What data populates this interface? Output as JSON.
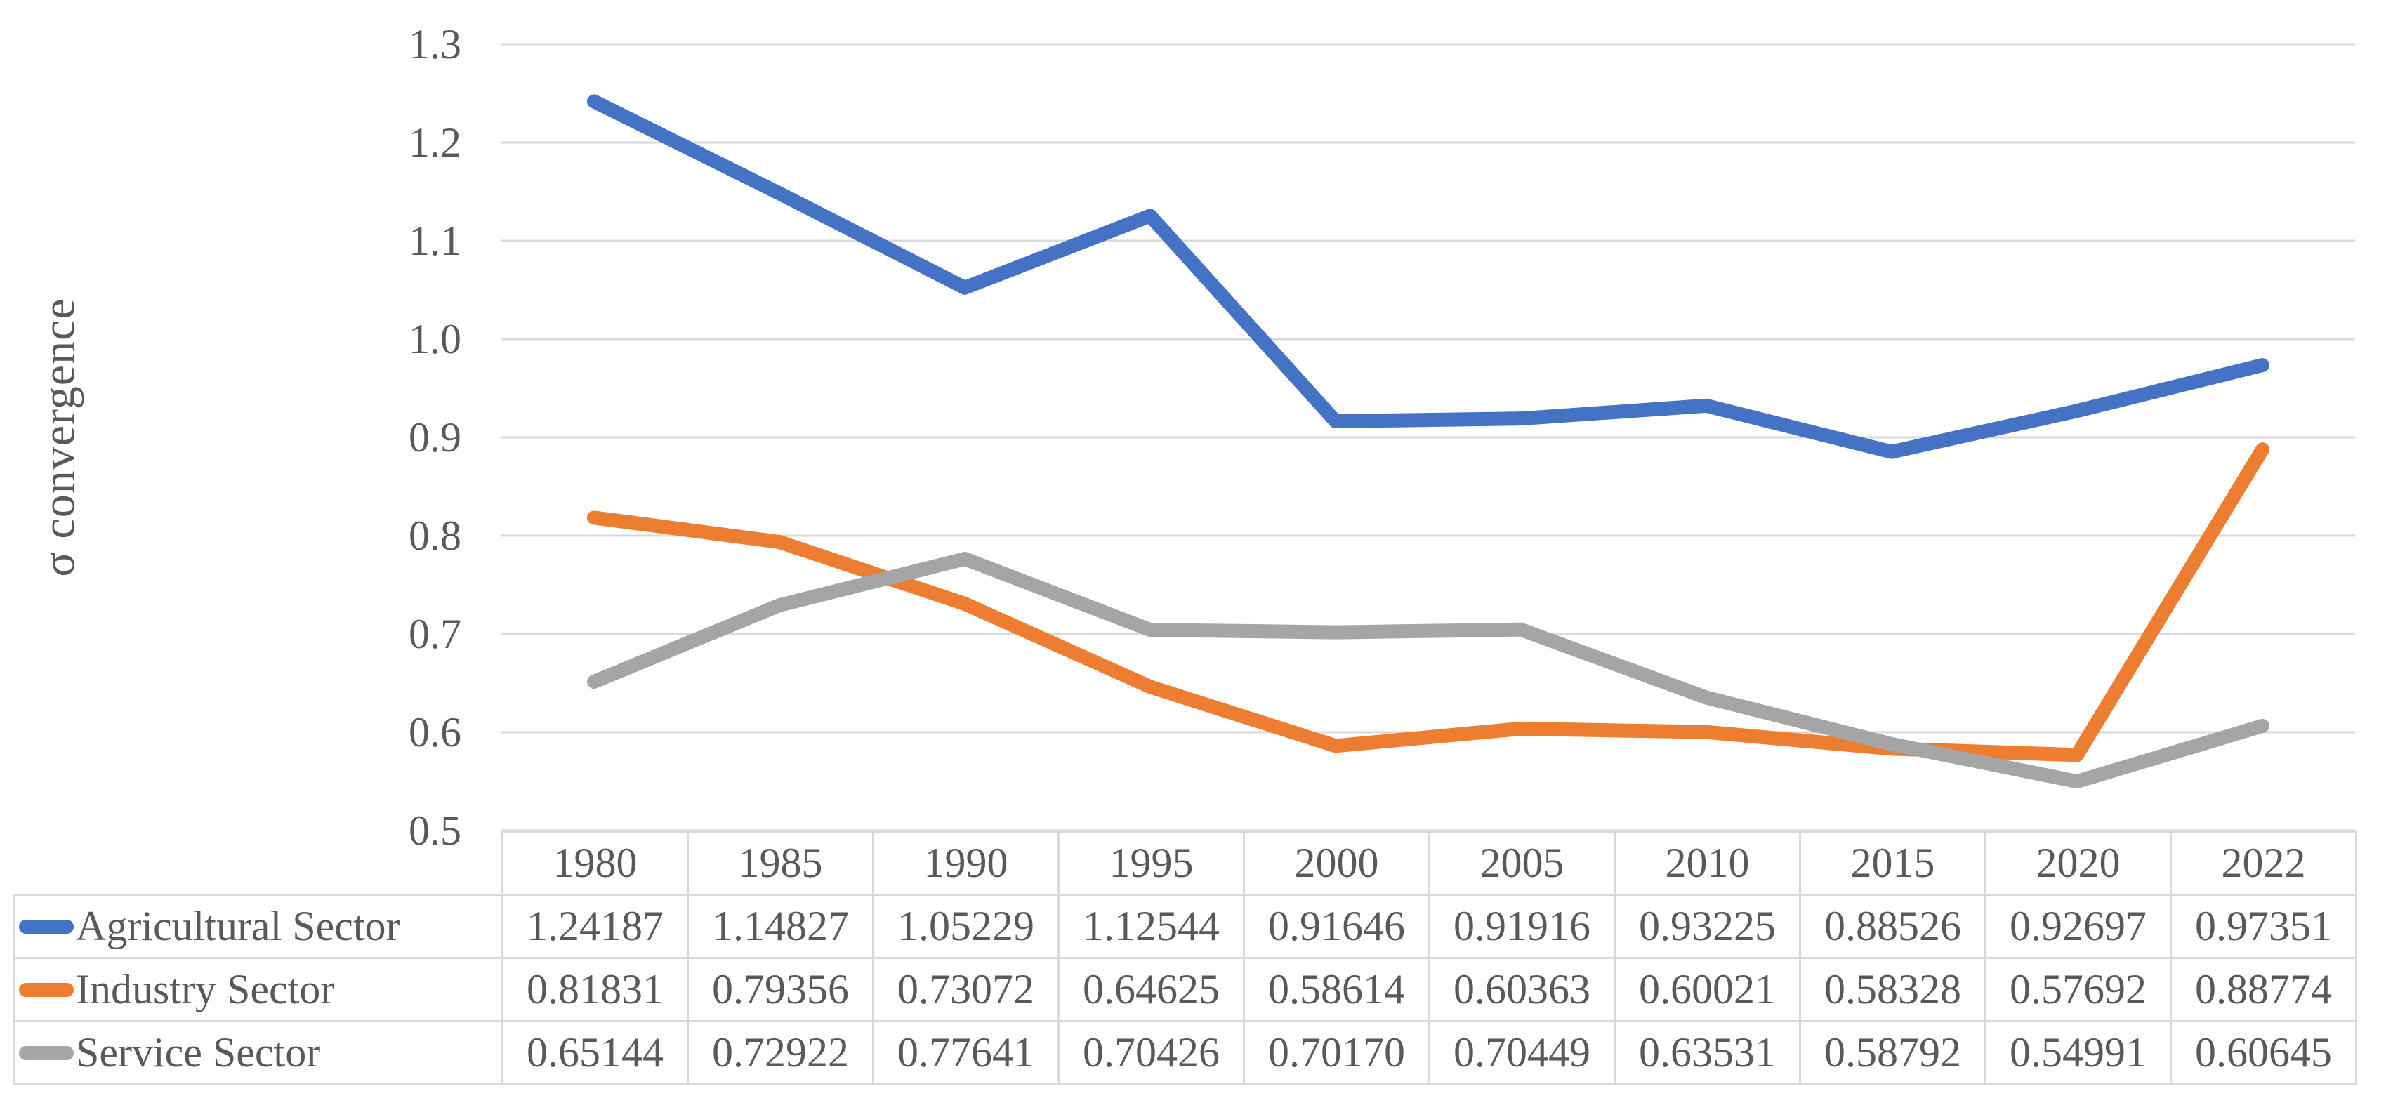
{
  "chart_data": {
    "type": "line",
    "title": "",
    "xlabel": "",
    "ylabel": "σ convergence",
    "categories": [
      "1980",
      "1985",
      "1990",
      "1995",
      "2000",
      "2005",
      "2010",
      "2015",
      "2020",
      "2022"
    ],
    "series": [
      {
        "name": "Agricultural Sector",
        "color": "#4472C4",
        "values": [
          1.24187,
          1.14827,
          1.05229,
          1.12544,
          0.91646,
          0.91916,
          0.93225,
          0.88526,
          0.92697,
          0.97351
        ]
      },
      {
        "name": "Industry Sector",
        "color": "#ED7D31",
        "values": [
          0.81831,
          0.79356,
          0.73072,
          0.64625,
          0.58614,
          0.60363,
          0.60021,
          0.58328,
          0.57692,
          0.88774
        ]
      },
      {
        "name": "Service Sector",
        "color": "#A5A5A5",
        "values": [
          0.65144,
          0.72922,
          0.77641,
          0.70426,
          0.7017,
          0.70449,
          0.63531,
          0.58792,
          0.54991,
          0.60645
        ]
      }
    ],
    "ylim": [
      0.5,
      1.3
    ],
    "yticks": [
      1.3,
      1.2,
      1.1,
      1.0,
      0.9,
      0.8,
      0.7,
      0.6,
      0.5
    ],
    "ytick_format_decimals": 1,
    "value_format_decimals": 5,
    "grid": "horizontal",
    "gridline_color": "#D9D9D9",
    "text_color": "#595959",
    "legend_position": "data-table-left",
    "data_table_shown": true
  }
}
